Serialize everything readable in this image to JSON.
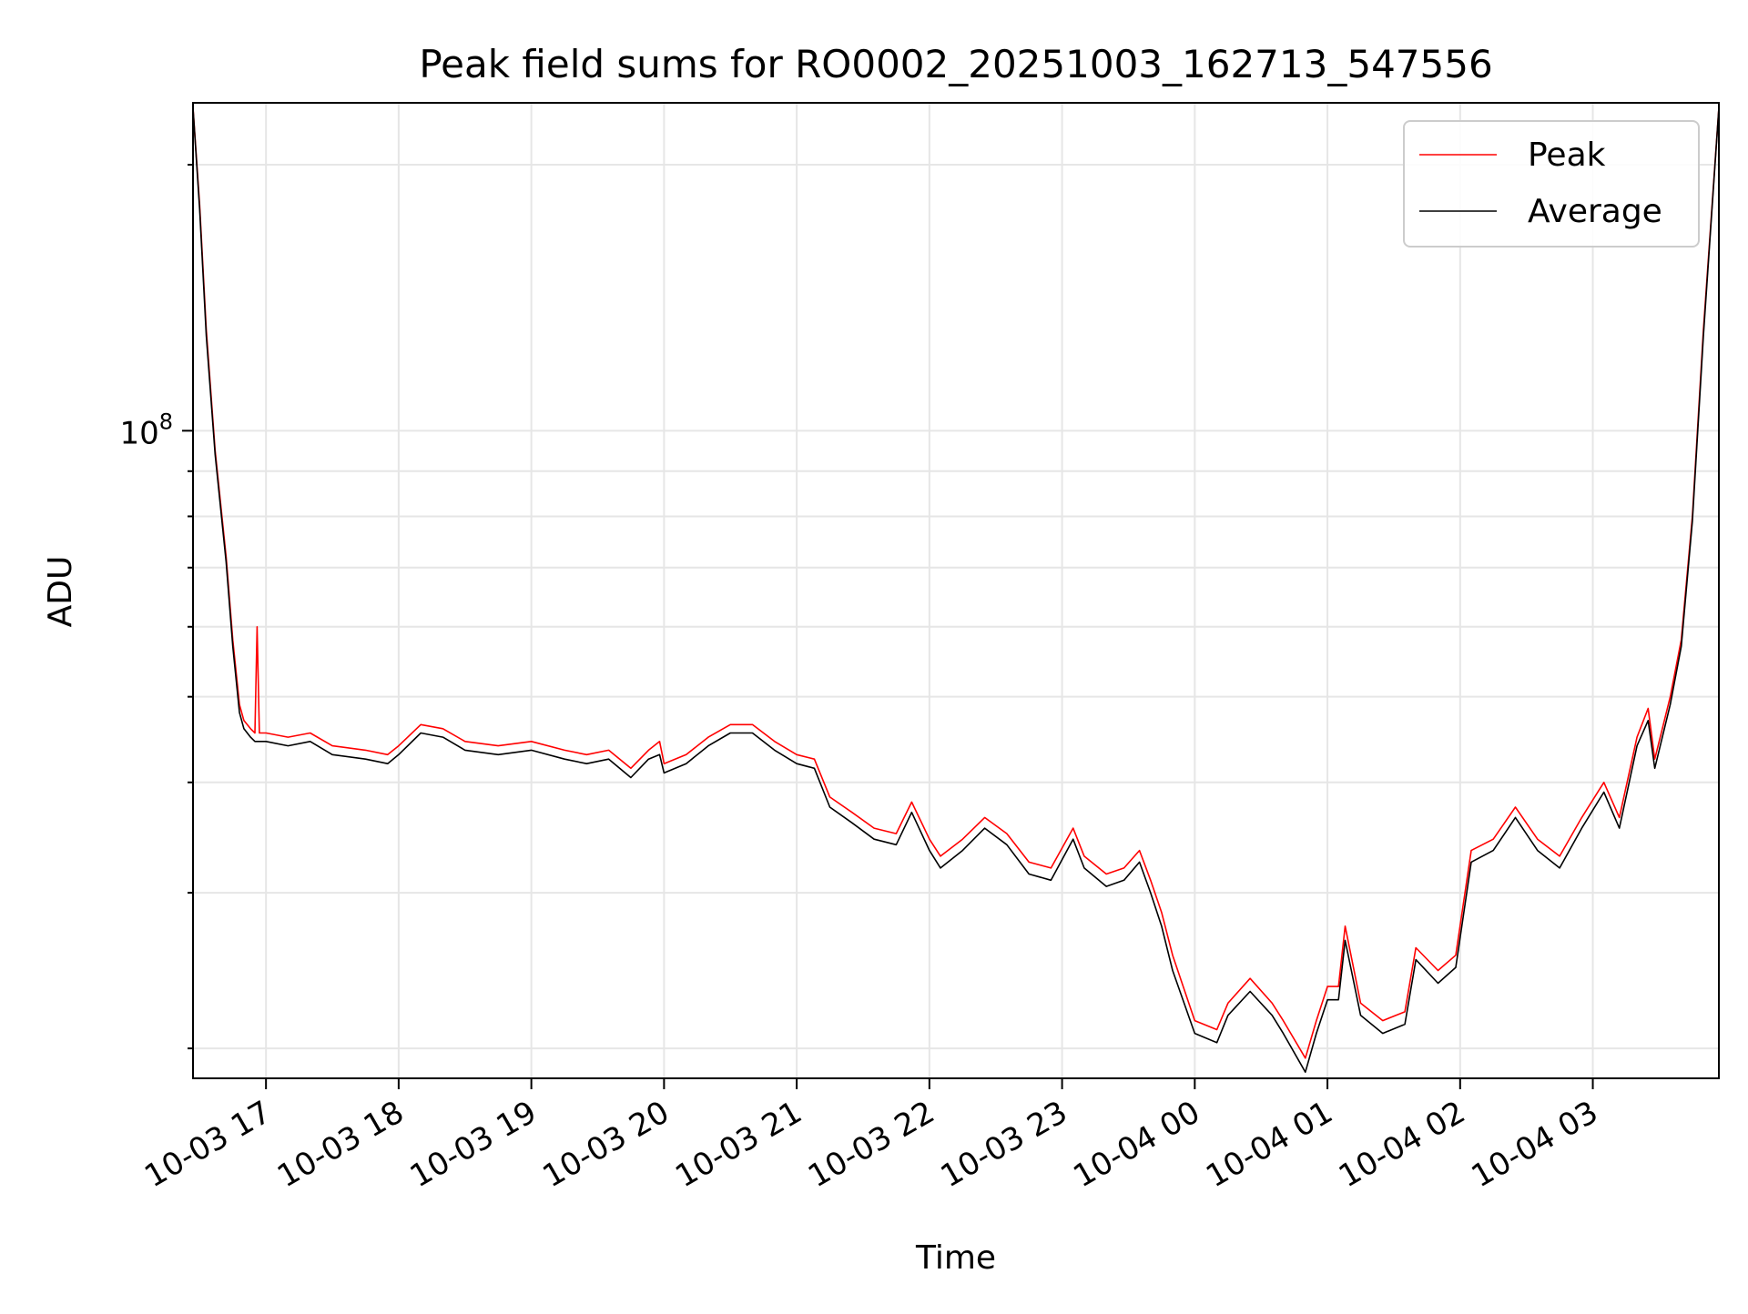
{
  "chart_data": {
    "type": "line",
    "title": "Peak field sums for RO0002_20251003_162713_547556",
    "xlabel": "Time",
    "ylabel": "ADU",
    "yscale": "log",
    "x_type": "datetime",
    "xlim": [
      "2025-10-03 16:27",
      "2025-10-04 03:57"
    ],
    "ylim": [
      18500000,
      235000000
    ],
    "grid": true,
    "legend_position": "upper right",
    "x_ticks": [
      {
        "value": "2025-10-03 17:00",
        "label": "10-03 17"
      },
      {
        "value": "2025-10-03 18:00",
        "label": "10-03 18"
      },
      {
        "value": "2025-10-03 19:00",
        "label": "10-03 19"
      },
      {
        "value": "2025-10-03 20:00",
        "label": "10-03 20"
      },
      {
        "value": "2025-10-03 21:00",
        "label": "10-03 21"
      },
      {
        "value": "2025-10-03 22:00",
        "label": "10-03 22"
      },
      {
        "value": "2025-10-03 23:00",
        "label": "10-03 23"
      },
      {
        "value": "2025-10-04 00:00",
        "label": "10-04 00"
      },
      {
        "value": "2025-10-04 01:00",
        "label": "10-04 01"
      },
      {
        "value": "2025-10-04 02:00",
        "label": "10-04 02"
      },
      {
        "value": "2025-10-04 03:00",
        "label": "10-04 03"
      }
    ],
    "y_ticks": [
      {
        "value": 100000000,
        "label": "10^8"
      }
    ],
    "series": [
      {
        "name": "Peak",
        "color": "#ff0000",
        "points": [
          [
            "2025-10-03 16:27",
            232000000
          ],
          [
            "2025-10-03 16:30",
            180000000
          ],
          [
            "2025-10-03 16:33",
            130000000
          ],
          [
            "2025-10-03 16:37",
            95000000
          ],
          [
            "2025-10-03 16:42",
            72000000
          ],
          [
            "2025-10-03 16:45",
            58000000
          ],
          [
            "2025-10-03 16:48",
            49000000
          ],
          [
            "2025-10-03 16:50",
            47000000
          ],
          [
            "2025-10-03 16:53",
            46000000
          ],
          [
            "2025-10-03 16:55",
            45500000
          ],
          [
            "2025-10-03 16:56",
            60000000
          ],
          [
            "2025-10-03 16:57",
            45500000
          ],
          [
            "2025-10-03 17:00",
            45500000
          ],
          [
            "2025-10-03 17:10",
            45000000
          ],
          [
            "2025-10-03 17:20",
            45500000
          ],
          [
            "2025-10-03 17:30",
            44000000
          ],
          [
            "2025-10-03 17:45",
            43500000
          ],
          [
            "2025-10-03 17:55",
            43000000
          ],
          [
            "2025-10-03 18:00",
            44000000
          ],
          [
            "2025-10-03 18:10",
            46500000
          ],
          [
            "2025-10-03 18:20",
            46000000
          ],
          [
            "2025-10-03 18:30",
            44500000
          ],
          [
            "2025-10-03 18:45",
            44000000
          ],
          [
            "2025-10-03 19:00",
            44500000
          ],
          [
            "2025-10-03 19:15",
            43500000
          ],
          [
            "2025-10-03 19:25",
            43000000
          ],
          [
            "2025-10-03 19:35",
            43500000
          ],
          [
            "2025-10-03 19:45",
            41500000
          ],
          [
            "2025-10-03 19:53",
            43500000
          ],
          [
            "2025-10-03 19:58",
            44500000
          ],
          [
            "2025-10-03 20:00",
            42000000
          ],
          [
            "2025-10-03 20:10",
            43000000
          ],
          [
            "2025-10-03 20:20",
            45000000
          ],
          [
            "2025-10-03 20:30",
            46500000
          ],
          [
            "2025-10-03 20:40",
            46500000
          ],
          [
            "2025-10-03 20:50",
            44500000
          ],
          [
            "2025-10-03 21:00",
            43000000
          ],
          [
            "2025-10-03 21:08",
            42500000
          ],
          [
            "2025-10-03 21:15",
            38500000
          ],
          [
            "2025-10-03 21:25",
            37000000
          ],
          [
            "2025-10-03 21:35",
            35500000
          ],
          [
            "2025-10-03 21:45",
            35000000
          ],
          [
            "2025-10-03 21:52",
            38000000
          ],
          [
            "2025-10-03 22:00",
            34500000
          ],
          [
            "2025-10-03 22:05",
            33000000
          ],
          [
            "2025-10-03 22:15",
            34500000
          ],
          [
            "2025-10-03 22:25",
            36500000
          ],
          [
            "2025-10-03 22:35",
            35000000
          ],
          [
            "2025-10-03 22:45",
            32500000
          ],
          [
            "2025-10-03 22:55",
            32000000
          ],
          [
            "2025-10-03 23:05",
            35500000
          ],
          [
            "2025-10-03 23:10",
            33000000
          ],
          [
            "2025-10-03 23:20",
            31500000
          ],
          [
            "2025-10-03 23:28",
            32000000
          ],
          [
            "2025-10-03 23:35",
            33500000
          ],
          [
            "2025-10-03 23:40",
            31000000
          ],
          [
            "2025-10-03 23:45",
            28500000
          ],
          [
            "2025-10-03 23:50",
            25500000
          ],
          [
            "2025-10-04 00:00",
            21500000
          ],
          [
            "2025-10-04 00:10",
            21000000
          ],
          [
            "2025-10-04 00:15",
            22500000
          ],
          [
            "2025-10-04 00:25",
            24000000
          ],
          [
            "2025-10-04 00:35",
            22500000
          ],
          [
            "2025-10-04 00:40",
            21500000
          ],
          [
            "2025-10-04 00:50",
            19500000
          ],
          [
            "2025-10-04 00:55",
            21500000
          ],
          [
            "2025-10-04 01:00",
            23500000
          ],
          [
            "2025-10-04 01:05",
            23500000
          ],
          [
            "2025-10-04 01:08",
            27500000
          ],
          [
            "2025-10-04 01:15",
            22500000
          ],
          [
            "2025-10-04 01:25",
            21500000
          ],
          [
            "2025-10-04 01:35",
            22000000
          ],
          [
            "2025-10-04 01:40",
            26000000
          ],
          [
            "2025-10-04 01:50",
            24500000
          ],
          [
            "2025-10-04 01:58",
            25500000
          ],
          [
            "2025-10-04 02:05",
            33500000
          ],
          [
            "2025-10-04 02:15",
            34500000
          ],
          [
            "2025-10-04 02:25",
            37500000
          ],
          [
            "2025-10-04 02:35",
            34500000
          ],
          [
            "2025-10-04 02:45",
            33000000
          ],
          [
            "2025-10-04 02:55",
            36500000
          ],
          [
            "2025-10-04 03:05",
            40000000
          ],
          [
            "2025-10-04 03:12",
            36500000
          ],
          [
            "2025-10-04 03:20",
            45000000
          ],
          [
            "2025-10-04 03:25",
            48500000
          ],
          [
            "2025-10-04 03:28",
            42500000
          ],
          [
            "2025-10-04 03:35",
            50000000
          ],
          [
            "2025-10-04 03:40",
            58000000
          ],
          [
            "2025-10-04 03:45",
            80000000
          ],
          [
            "2025-10-04 03:50",
            130000000
          ],
          [
            "2025-10-04 03:57",
            232000000
          ]
        ]
      },
      {
        "name": "Average",
        "color": "#000000",
        "points": [
          [
            "2025-10-03 16:27",
            232000000
          ],
          [
            "2025-10-03 16:30",
            178000000
          ],
          [
            "2025-10-03 16:33",
            128000000
          ],
          [
            "2025-10-03 16:37",
            94000000
          ],
          [
            "2025-10-03 16:42",
            71000000
          ],
          [
            "2025-10-03 16:45",
            57000000
          ],
          [
            "2025-10-03 16:48",
            48000000
          ],
          [
            "2025-10-03 16:50",
            46000000
          ],
          [
            "2025-10-03 16:53",
            45000000
          ],
          [
            "2025-10-03 16:55",
            44500000
          ],
          [
            "2025-10-03 17:00",
            44500000
          ],
          [
            "2025-10-03 17:10",
            44000000
          ],
          [
            "2025-10-03 17:20",
            44500000
          ],
          [
            "2025-10-03 17:30",
            43000000
          ],
          [
            "2025-10-03 17:45",
            42500000
          ],
          [
            "2025-10-03 17:55",
            42000000
          ],
          [
            "2025-10-03 18:00",
            43000000
          ],
          [
            "2025-10-03 18:10",
            45500000
          ],
          [
            "2025-10-03 18:20",
            45000000
          ],
          [
            "2025-10-03 18:30",
            43500000
          ],
          [
            "2025-10-03 18:45",
            43000000
          ],
          [
            "2025-10-03 19:00",
            43500000
          ],
          [
            "2025-10-03 19:15",
            42500000
          ],
          [
            "2025-10-03 19:25",
            42000000
          ],
          [
            "2025-10-03 19:35",
            42500000
          ],
          [
            "2025-10-03 19:45",
            40500000
          ],
          [
            "2025-10-03 19:53",
            42500000
          ],
          [
            "2025-10-03 19:58",
            43000000
          ],
          [
            "2025-10-03 20:00",
            41000000
          ],
          [
            "2025-10-03 20:10",
            42000000
          ],
          [
            "2025-10-03 20:20",
            44000000
          ],
          [
            "2025-10-03 20:30",
            45500000
          ],
          [
            "2025-10-03 20:40",
            45500000
          ],
          [
            "2025-10-03 20:50",
            43500000
          ],
          [
            "2025-10-03 21:00",
            42000000
          ],
          [
            "2025-10-03 21:08",
            41500000
          ],
          [
            "2025-10-03 21:15",
            37500000
          ],
          [
            "2025-10-03 21:25",
            36000000
          ],
          [
            "2025-10-03 21:35",
            34500000
          ],
          [
            "2025-10-03 21:45",
            34000000
          ],
          [
            "2025-10-03 21:52",
            37000000
          ],
          [
            "2025-10-03 22:00",
            33500000
          ],
          [
            "2025-10-03 22:05",
            32000000
          ],
          [
            "2025-10-03 22:15",
            33500000
          ],
          [
            "2025-10-03 22:25",
            35500000
          ],
          [
            "2025-10-03 22:35",
            34000000
          ],
          [
            "2025-10-03 22:45",
            31500000
          ],
          [
            "2025-10-03 22:55",
            31000000
          ],
          [
            "2025-10-03 23:05",
            34500000
          ],
          [
            "2025-10-03 23:10",
            32000000
          ],
          [
            "2025-10-03 23:20",
            30500000
          ],
          [
            "2025-10-03 23:28",
            31000000
          ],
          [
            "2025-10-03 23:35",
            32500000
          ],
          [
            "2025-10-03 23:40",
            30000000
          ],
          [
            "2025-10-03 23:45",
            27500000
          ],
          [
            "2025-10-03 23:50",
            24500000
          ],
          [
            "2025-10-04 00:00",
            20800000
          ],
          [
            "2025-10-04 00:10",
            20300000
          ],
          [
            "2025-10-04 00:15",
            21800000
          ],
          [
            "2025-10-04 00:25",
            23200000
          ],
          [
            "2025-10-04 00:35",
            21800000
          ],
          [
            "2025-10-04 00:40",
            20800000
          ],
          [
            "2025-10-04 00:50",
            18800000
          ],
          [
            "2025-10-04 00:55",
            20800000
          ],
          [
            "2025-10-04 01:00",
            22700000
          ],
          [
            "2025-10-04 01:05",
            22700000
          ],
          [
            "2025-10-04 01:08",
            26500000
          ],
          [
            "2025-10-04 01:15",
            21800000
          ],
          [
            "2025-10-04 01:25",
            20800000
          ],
          [
            "2025-10-04 01:35",
            21300000
          ],
          [
            "2025-10-04 01:40",
            25200000
          ],
          [
            "2025-10-04 01:50",
            23700000
          ],
          [
            "2025-10-04 01:58",
            24700000
          ],
          [
            "2025-10-04 02:05",
            32500000
          ],
          [
            "2025-10-04 02:15",
            33500000
          ],
          [
            "2025-10-04 02:25",
            36500000
          ],
          [
            "2025-10-04 02:35",
            33500000
          ],
          [
            "2025-10-04 02:45",
            32000000
          ],
          [
            "2025-10-04 02:55",
            35500000
          ],
          [
            "2025-10-04 03:05",
            39000000
          ],
          [
            "2025-10-04 03:12",
            35500000
          ],
          [
            "2025-10-04 03:20",
            44000000
          ],
          [
            "2025-10-04 03:25",
            47000000
          ],
          [
            "2025-10-04 03:28",
            41500000
          ],
          [
            "2025-10-04 03:35",
            49000000
          ],
          [
            "2025-10-04 03:40",
            57000000
          ],
          [
            "2025-10-04 03:45",
            79000000
          ],
          [
            "2025-10-04 03:50",
            128000000
          ],
          [
            "2025-10-04 03:57",
            232000000
          ]
        ]
      }
    ]
  }
}
